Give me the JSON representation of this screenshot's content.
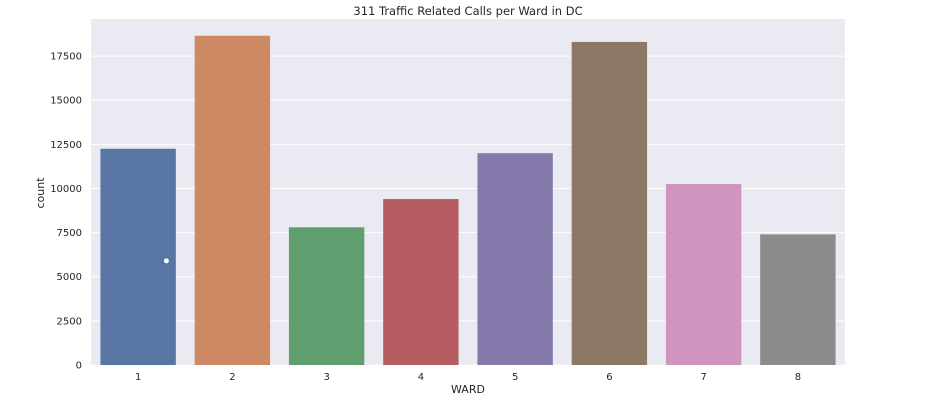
{
  "chart_data": {
    "type": "bar",
    "title": "311 Traffic Related Calls per Ward in DC",
    "xlabel": "WARD",
    "ylabel": "count",
    "categories": [
      "1",
      "2",
      "3",
      "4",
      "5",
      "6",
      "7",
      "8"
    ],
    "values": [
      12250,
      18650,
      7800,
      9400,
      12000,
      18300,
      10250,
      7400
    ],
    "ylim": [
      0,
      19600
    ],
    "yticks": [
      0,
      2500,
      5000,
      7500,
      10000,
      12500,
      15000,
      17500
    ],
    "ytick_labels": [
      "0",
      "2500",
      "5000",
      "7500",
      "10000",
      "12500",
      "15000",
      "17500"
    ],
    "colors": [
      "#5875a4",
      "#cc8963",
      "#5f9e6e",
      "#b55d60",
      "#857aab",
      "#8d7866",
      "#d095bf",
      "#8c8c8c"
    ],
    "grid": true,
    "background": "#eaeaf2",
    "marker_point": {
      "x": "1",
      "y": 5900
    }
  }
}
